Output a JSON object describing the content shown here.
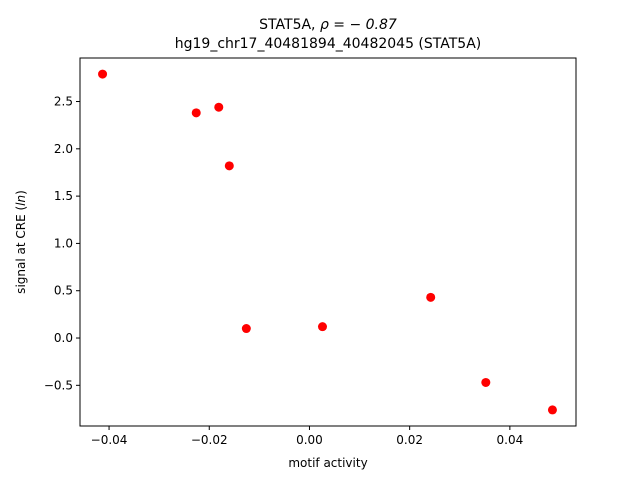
{
  "chart_data": {
    "type": "scatter",
    "title_line1_prefix": "STAT5A, ",
    "title_line1_math": "ρ = − 0.87",
    "title_line2": "hg19_chr17_40481894_40482045 (STAT5A)",
    "xlabel": "motif activity",
    "ylabel_prefix": "signal at CRE (",
    "ylabel_math": "ln",
    "ylabel_suffix": ")",
    "xlim": [
      -0.0458,
      0.0532
    ],
    "ylim": [
      -0.93,
      2.96
    ],
    "xticks": [
      -0.04,
      -0.02,
      0.0,
      0.02,
      0.04
    ],
    "xtick_labels": [
      "−0.04",
      "−0.02",
      "0.00",
      "0.02",
      "0.04"
    ],
    "yticks": [
      -0.5,
      0.0,
      0.5,
      1.0,
      1.5,
      2.0,
      2.5
    ],
    "ytick_labels": [
      "−0.5",
      "0.0",
      "0.5",
      "1.0",
      "1.5",
      "2.0",
      "2.5"
    ],
    "grid": false,
    "marker_color": "#ff0000",
    "points": [
      {
        "x": -0.0413,
        "y": 2.79
      },
      {
        "x": -0.0226,
        "y": 2.38
      },
      {
        "x": -0.0181,
        "y": 2.44
      },
      {
        "x": -0.016,
        "y": 1.82
      },
      {
        "x": -0.0126,
        "y": 0.1
      },
      {
        "x": 0.0026,
        "y": 0.12
      },
      {
        "x": 0.0242,
        "y": 0.43
      },
      {
        "x": 0.0352,
        "y": -0.47
      },
      {
        "x": 0.0485,
        "y": -0.76
      }
    ]
  }
}
